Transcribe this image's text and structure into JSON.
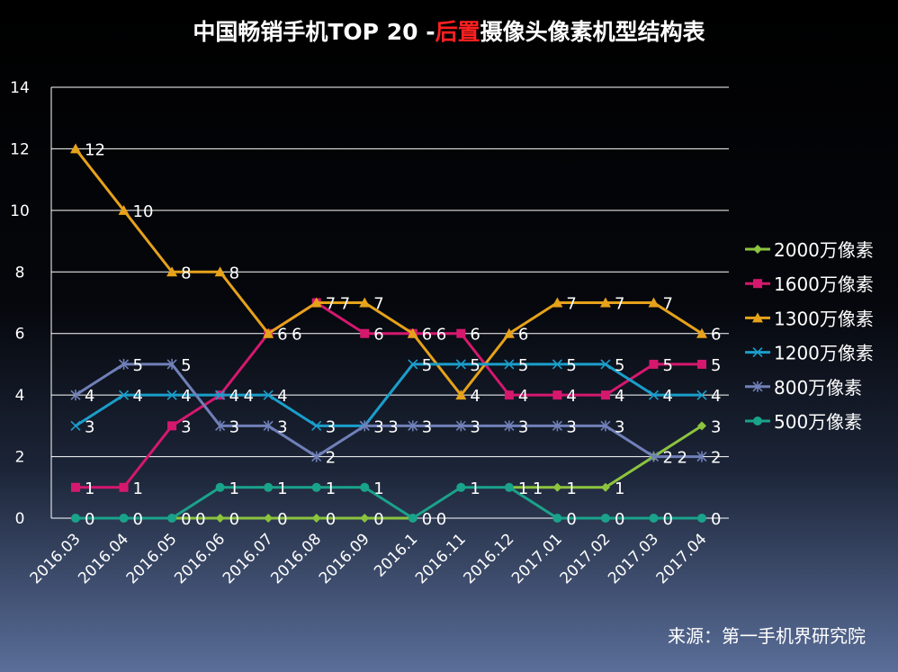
{
  "chart_data": {
    "type": "line",
    "title_parts": [
      "中国畅销手机TOP 20 -",
      "后置",
      "摄像头像素机型结构表"
    ],
    "title_highlight_color": "#ff2020",
    "categories": [
      "2016.03",
      "2016.04",
      "2016.05",
      "2016.06",
      "2016.07",
      "2016.08",
      "2016.09",
      "2016.1",
      "2016.11",
      "2016.12",
      "2017.01",
      "2017.02",
      "2017.03",
      "2017.04"
    ],
    "ylim": [
      0,
      14
    ],
    "yticks": [
      0,
      2,
      4,
      6,
      8,
      10,
      12,
      14
    ],
    "grid": true,
    "legend_position": "right",
    "series": [
      {
        "name": "2000万像素",
        "color": "#8cc43e",
        "marker": "diamond",
        "values": [
          null,
          null,
          0,
          0,
          0,
          0,
          0,
          0,
          null,
          1,
          1,
          1,
          2,
          3
        ]
      },
      {
        "name": "1600万像素",
        "color": "#d5186e",
        "marker": "square",
        "values": [
          1,
          1,
          3,
          4,
          6,
          7,
          6,
          6,
          6,
          4,
          4,
          4,
          5,
          5
        ]
      },
      {
        "name": "1300万像素",
        "color": "#e6a21a",
        "marker": "triangle",
        "values": [
          12,
          10,
          8,
          8,
          6,
          7,
          7,
          6,
          4,
          6,
          7,
          7,
          7,
          6
        ]
      },
      {
        "name": "1200万像素",
        "color": "#1b9ecb",
        "marker": "x",
        "values": [
          3,
          4,
          4,
          4,
          4,
          3,
          3,
          5,
          5,
          5,
          5,
          5,
          4,
          4
        ]
      },
      {
        "name": "800万像素",
        "color": "#7080b8",
        "marker": "star",
        "values": [
          4,
          5,
          5,
          3,
          3,
          2,
          3,
          3,
          3,
          3,
          3,
          3,
          2,
          2
        ]
      },
      {
        "name": "500万像素",
        "color": "#1aa38b",
        "marker": "circle",
        "values": [
          0,
          0,
          0,
          1,
          1,
          1,
          1,
          0,
          1,
          1,
          0,
          0,
          0,
          0
        ]
      }
    ],
    "source": "来源：第一手机界研究院"
  }
}
